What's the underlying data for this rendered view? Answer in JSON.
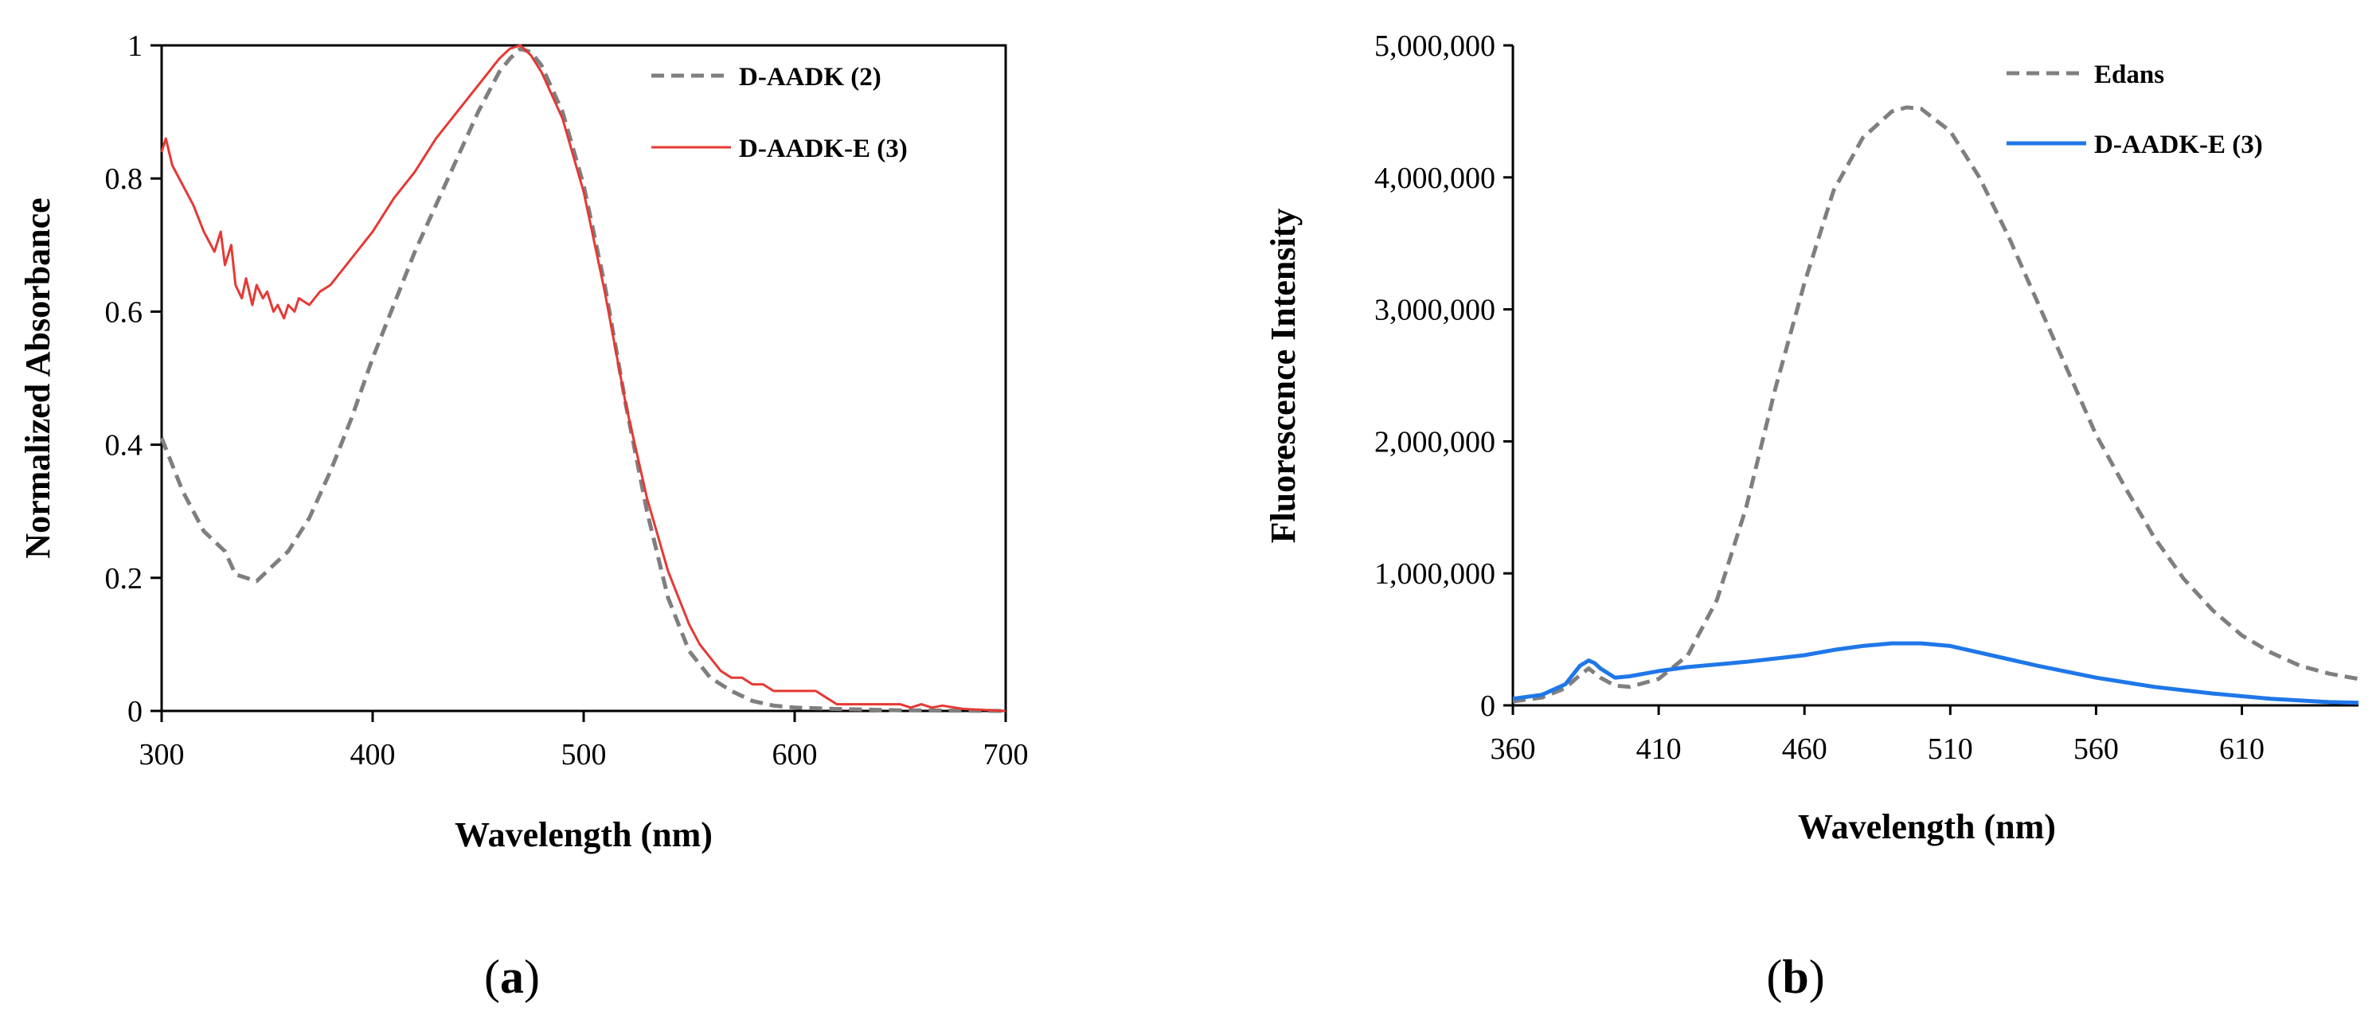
{
  "chart_data": [
    {
      "panel": "a",
      "type": "line",
      "panel_label_parts": [
        "(",
        "a",
        ")"
      ],
      "xlabel": "Wavelength (nm)",
      "ylabel": "Normalized Absorbance",
      "xlim": [
        300,
        700
      ],
      "ylim": [
        0,
        1
      ],
      "xticks": [
        300,
        400,
        500,
        600,
        700
      ],
      "xtick_labels": [
        "300",
        "400",
        "500",
        "600",
        "700"
      ],
      "yticks": [
        0,
        0.2,
        0.4,
        0.6,
        0.8,
        1
      ],
      "ytick_labels": [
        "0",
        "0.2",
        "0.4",
        "0.6",
        "0.8",
        "1"
      ],
      "legend_position": "top-right",
      "series": [
        {
          "name": "D-AADK (2)",
          "color": "#7f7f7f",
          "style": "dashed",
          "x": [
            300,
            310,
            320,
            330,
            335,
            340,
            345,
            350,
            360,
            370,
            380,
            390,
            400,
            410,
            420,
            430,
            440,
            450,
            460,
            465,
            470,
            475,
            480,
            490,
            500,
            510,
            520,
            530,
            540,
            550,
            560,
            570,
            580,
            590,
            600,
            620,
            650,
            700
          ],
          "y": [
            0.41,
            0.33,
            0.27,
            0.24,
            0.205,
            0.2,
            0.195,
            0.21,
            0.24,
            0.29,
            0.36,
            0.44,
            0.53,
            0.61,
            0.69,
            0.76,
            0.83,
            0.9,
            0.96,
            0.98,
            0.995,
            0.99,
            0.97,
            0.9,
            0.79,
            0.64,
            0.46,
            0.3,
            0.17,
            0.09,
            0.05,
            0.03,
            0.015,
            0.008,
            0.005,
            0.003,
            0.001,
            0.0
          ]
        },
        {
          "name": "D-AADK-E (3)",
          "color": "#e53935",
          "style": "solid",
          "x": [
            300,
            302,
            305,
            310,
            315,
            320,
            325,
            328,
            330,
            333,
            335,
            338,
            340,
            343,
            345,
            348,
            350,
            353,
            355,
            358,
            360,
            363,
            365,
            370,
            375,
            380,
            390,
            400,
            410,
            420,
            430,
            440,
            450,
            455,
            460,
            465,
            470,
            475,
            480,
            490,
            500,
            510,
            520,
            530,
            540,
            545,
            550,
            555,
            560,
            565,
            570,
            575,
            580,
            585,
            590,
            595,
            600,
            610,
            615,
            620,
            640,
            650,
            655,
            660,
            665,
            670,
            680,
            700
          ],
          "y": [
            0.84,
            0.86,
            0.82,
            0.79,
            0.76,
            0.72,
            0.69,
            0.72,
            0.67,
            0.7,
            0.64,
            0.62,
            0.65,
            0.61,
            0.64,
            0.62,
            0.63,
            0.6,
            0.61,
            0.59,
            0.61,
            0.6,
            0.62,
            0.61,
            0.63,
            0.64,
            0.68,
            0.72,
            0.77,
            0.81,
            0.86,
            0.9,
            0.94,
            0.96,
            0.98,
            0.995,
            1.0,
            0.985,
            0.96,
            0.89,
            0.78,
            0.63,
            0.46,
            0.32,
            0.21,
            0.17,
            0.13,
            0.1,
            0.08,
            0.06,
            0.05,
            0.05,
            0.04,
            0.04,
            0.03,
            0.03,
            0.03,
            0.03,
            0.02,
            0.01,
            0.01,
            0.01,
            0.005,
            0.01,
            0.005,
            0.008,
            0.003,
            0.0
          ]
        }
      ]
    },
    {
      "panel": "b",
      "type": "line",
      "panel_label_parts": [
        "(",
        "b",
        ")"
      ],
      "xlabel": "Wavelength (nm)",
      "ylabel": "Fluorescence Intensity",
      "xlim": [
        360,
        650
      ],
      "ylim": [
        0,
        5000000
      ],
      "xticks": [
        360,
        410,
        460,
        510,
        560,
        610
      ],
      "xtick_labels": [
        "360",
        "410",
        "460",
        "510",
        "560",
        "610"
      ],
      "yticks": [
        0,
        1000000,
        2000000,
        3000000,
        4000000,
        5000000
      ],
      "ytick_labels": [
        "0",
        "1,000,000",
        "2,000,000",
        "3,000,000",
        "4,000,000",
        "5,000,000"
      ],
      "legend_position": "top-right",
      "series": [
        {
          "name": "Edans",
          "color": "#7f7f7f",
          "style": "dashed",
          "x": [
            360,
            370,
            378,
            383,
            386,
            390,
            395,
            400,
            410,
            420,
            430,
            440,
            450,
            460,
            470,
            480,
            490,
            495,
            500,
            510,
            520,
            530,
            540,
            550,
            560,
            570,
            580,
            590,
            600,
            610,
            620,
            630,
            640,
            650
          ],
          "y": [
            30000,
            60000,
            130000,
            230000,
            280000,
            210000,
            150000,
            140000,
            200000,
            380000,
            800000,
            1500000,
            2400000,
            3200000,
            3900000,
            4300000,
            4500000,
            4530000,
            4520000,
            4350000,
            4000000,
            3550000,
            3050000,
            2550000,
            2050000,
            1650000,
            1270000,
            960000,
            720000,
            530000,
            400000,
            300000,
            240000,
            200000
          ]
        },
        {
          "name": "D-AADK-E (3)",
          "color": "#1f77e8",
          "style": "solid",
          "x": [
            360,
            370,
            378,
            383,
            386,
            388,
            390,
            395,
            400,
            410,
            420,
            440,
            460,
            470,
            480,
            490,
            500,
            510,
            520,
            530,
            540,
            560,
            580,
            600,
            620,
            640,
            650
          ],
          "y": [
            50000,
            80000,
            160000,
            300000,
            340000,
            320000,
            280000,
            210000,
            220000,
            260000,
            290000,
            330000,
            380000,
            420000,
            450000,
            470000,
            470000,
            450000,
            400000,
            350000,
            300000,
            210000,
            140000,
            90000,
            50000,
            25000,
            20000
          ]
        }
      ]
    }
  ]
}
